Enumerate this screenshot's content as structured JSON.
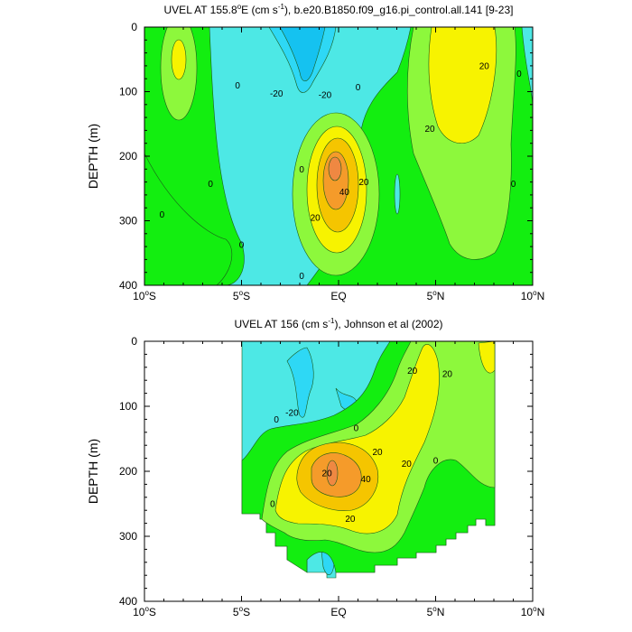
{
  "chart_data": [
    {
      "type": "heatmap",
      "title": "UVEL AT 155.8°E (cm s⁻¹), b.e20.B1850.f09_g16.pi_control.all.141 [9-23]",
      "title_parts": {
        "pre": "UVEL AT 155.8",
        "deg": "o",
        "mid": "E (cm s",
        "exp": "-1",
        "post": "), b.e20.B1850.f09_g16.pi_control.all.141 [9-23]"
      },
      "ylabel": "DEPTH (m)",
      "xlabel": "",
      "xlim": [
        -10,
        10
      ],
      "ylim": [
        400,
        0
      ],
      "y_inverted": true,
      "x_ticks": [
        {
          "v": -10,
          "num": "10",
          "deg": "o",
          "hem": "S"
        },
        {
          "v": -5,
          "num": "5",
          "deg": "o",
          "hem": "S"
        },
        {
          "v": 0,
          "num": "EQ",
          "deg": "",
          "hem": ""
        },
        {
          "v": 5,
          "num": "5",
          "deg": "o",
          "hem": "N"
        },
        {
          "v": 10,
          "num": "10",
          "deg": "o",
          "hem": "N"
        }
      ],
      "y_ticks": [
        {
          "v": 0,
          "label": "0"
        },
        {
          "v": 100,
          "label": "100"
        },
        {
          "v": 200,
          "label": "200"
        },
        {
          "v": 300,
          "label": "300"
        },
        {
          "v": 400,
          "label": "400"
        }
      ],
      "grid": false,
      "contour_labels": [
        {
          "text": "0",
          "x": -5.2,
          "y": 90
        },
        {
          "text": "-20",
          "x": -3.2,
          "y": 103
        },
        {
          "text": "-20",
          "x": -0.7,
          "y": 105
        },
        {
          "text": "0",
          "x": 1.0,
          "y": 93
        },
        {
          "text": "20",
          "x": 7.5,
          "y": 60
        },
        {
          "text": "20",
          "x": 4.7,
          "y": 157
        },
        {
          "text": "0",
          "x": 9.3,
          "y": 72
        },
        {
          "text": "0",
          "x": -9.1,
          "y": 290
        },
        {
          "text": "0",
          "x": -6.6,
          "y": 243
        },
        {
          "text": "0",
          "x": -5.0,
          "y": 337
        },
        {
          "text": "0",
          "x": -1.9,
          "y": 220
        },
        {
          "text": "40",
          "x": 0.3,
          "y": 255
        },
        {
          "text": "20",
          "x": 1.3,
          "y": 240
        },
        {
          "text": "20",
          "x": -1.2,
          "y": 295
        },
        {
          "text": "0",
          "x": -1.9,
          "y": 385
        },
        {
          "text": "0",
          "x": 9.0,
          "y": 243
        }
      ]
    },
    {
      "type": "heatmap",
      "title": "UVEL AT 156 (cm s⁻¹), Johnson et al (2002)",
      "title_parts": {
        "pre": "UVEL AT 156 (cm s",
        "exp": "-1",
        "post": "), Johnson et al (2002)"
      },
      "ylabel": "DEPTH (m)",
      "xlabel": "",
      "xlim": [
        -10,
        10
      ],
      "ylim": [
        400,
        0
      ],
      "y_inverted": true,
      "x_ticks": [
        {
          "v": -10,
          "num": "10",
          "deg": "o",
          "hem": "S"
        },
        {
          "v": -5,
          "num": "5",
          "deg": "o",
          "hem": "S"
        },
        {
          "v": 0,
          "num": "EQ",
          "deg": "",
          "hem": ""
        },
        {
          "v": 5,
          "num": "5",
          "deg": "o",
          "hem": "N"
        },
        {
          "v": 10,
          "num": "10",
          "deg": "o",
          "hem": "N"
        }
      ],
      "y_ticks": [
        {
          "v": 0,
          "label": "0"
        },
        {
          "v": 100,
          "label": "100"
        },
        {
          "v": 200,
          "label": "200"
        },
        {
          "v": 300,
          "label": "300"
        },
        {
          "v": 400,
          "label": "400"
        }
      ],
      "grid": false,
      "data_extent": {
        "x": [
          -5,
          8
        ],
        "y_max_approx": 350
      },
      "contour_labels": [
        {
          "text": "-20",
          "x": -2.4,
          "y": 110
        },
        {
          "text": "0",
          "x": 0.9,
          "y": 133
        },
        {
          "text": "20",
          "x": 3.8,
          "y": 45
        },
        {
          "text": "20",
          "x": 5.6,
          "y": 50
        },
        {
          "text": "20",
          "x": 2.0,
          "y": 170
        },
        {
          "text": "20",
          "x": 3.5,
          "y": 188
        },
        {
          "text": "0",
          "x": 5.0,
          "y": 183
        },
        {
          "text": "0",
          "x": -3.2,
          "y": 120
        },
        {
          "text": "20",
          "x": -0.6,
          "y": 203
        },
        {
          "text": "40",
          "x": 1.4,
          "y": 212
        },
        {
          "text": "20",
          "x": 0.6,
          "y": 273
        },
        {
          "text": "0",
          "x": -3.4,
          "y": 250
        }
      ]
    }
  ],
  "colors": {
    "lt_cyan": "#4de8e5",
    "cyan_blue": "#2ed8f5",
    "blue": "#15c2f0",
    "green": "#13ee10",
    "green2": "#8df83c",
    "yellow": "#f7f300",
    "gold": "#f5c500",
    "orange": "#f59b2a",
    "salmon": "#ef8842"
  }
}
